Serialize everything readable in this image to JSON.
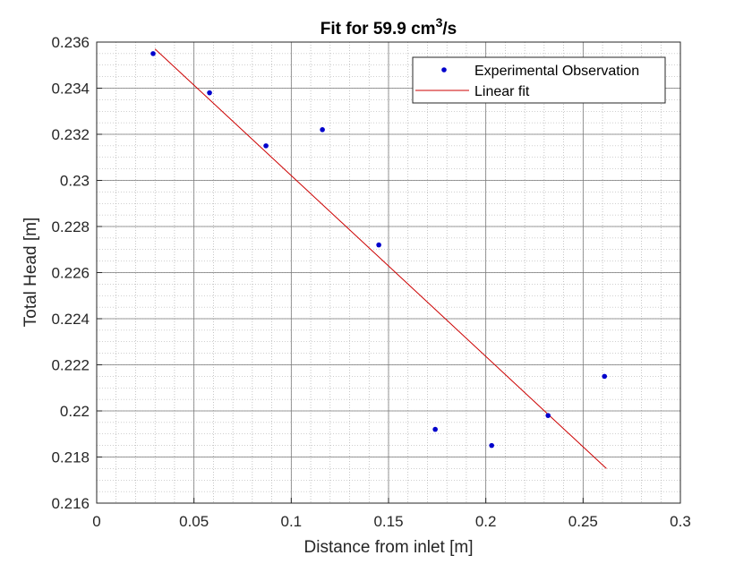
{
  "chart_data": {
    "type": "scatter",
    "title": "Fit for 59.9 cm",
    "title_superscript": "3",
    "title_suffix": "/s",
    "xlabel": "Distance from inlet [m]",
    "ylabel": "Total Head [m]",
    "xlim": [
      0,
      0.3
    ],
    "ylim": [
      0.216,
      0.236
    ],
    "xticks": [
      0,
      0.05,
      0.1,
      0.15,
      0.2,
      0.25,
      0.3
    ],
    "xtick_labels": [
      "0",
      "0.05",
      "0.1",
      "0.15",
      "0.2",
      "0.25",
      "0.3"
    ],
    "yticks": [
      0.216,
      0.218,
      0.22,
      0.222,
      0.224,
      0.226,
      0.228,
      0.23,
      0.232,
      0.234,
      0.236
    ],
    "ytick_labels": [
      "0.216",
      "0.218",
      "0.22",
      "0.222",
      "0.224",
      "0.226",
      "0.228",
      "0.23",
      "0.232",
      "0.234",
      "0.236"
    ],
    "grid": true,
    "minor_grid": true,
    "legend_position": "top-right",
    "series": [
      {
        "name": "Experimental Observation",
        "kind": "scatter",
        "color": "#0000cc",
        "x": [
          0.029,
          0.058,
          0.087,
          0.116,
          0.145,
          0.174,
          0.203,
          0.232,
          0.261
        ],
        "y": [
          0.2355,
          0.2338,
          0.2315,
          0.2322,
          0.2272,
          0.2192,
          0.2185,
          0.2198,
          0.2215
        ]
      },
      {
        "name": "Linear fit",
        "kind": "line",
        "color": "#cc0000",
        "x": [
          0.03,
          0.262
        ],
        "y": [
          0.2357,
          0.2175
        ]
      }
    ]
  }
}
